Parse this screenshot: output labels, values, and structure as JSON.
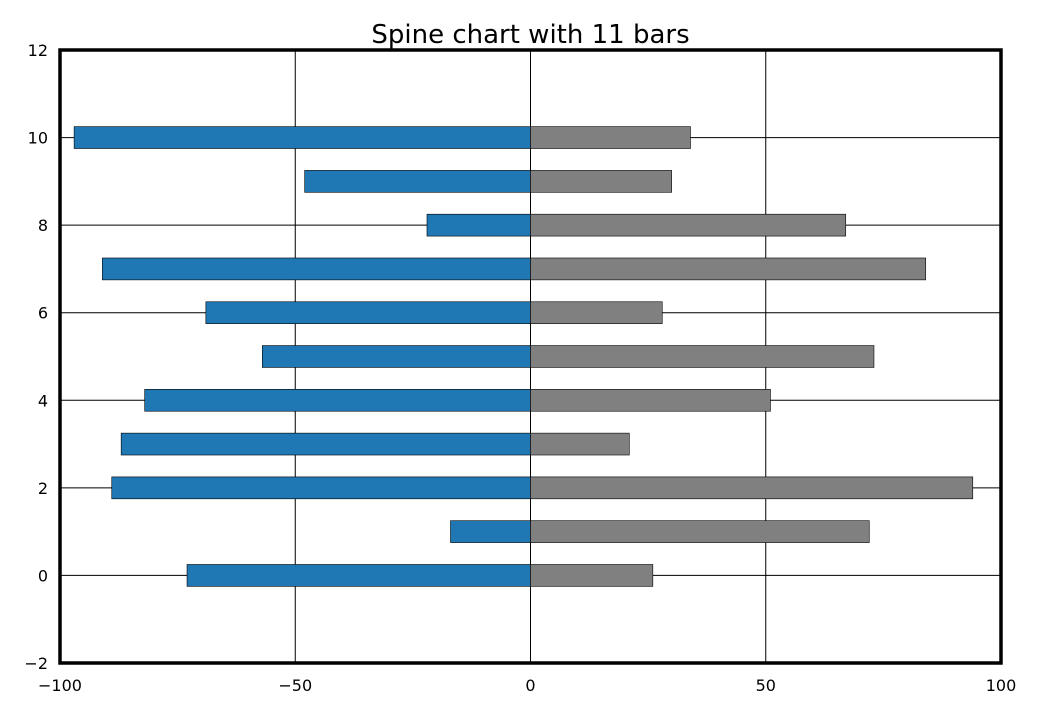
{
  "chart_data": {
    "type": "bar",
    "orientation": "horizontal",
    "title": "Spine chart with 11 bars",
    "xlabel": "",
    "ylabel": "",
    "xlim": [
      -100,
      100
    ],
    "ylim": [
      -2,
      12
    ],
    "x_ticks": [
      -100,
      -50,
      0,
      50,
      100
    ],
    "x_tick_labels": [
      "−100",
      "−50",
      "0",
      "50",
      "100"
    ],
    "y_ticks": [
      -2,
      0,
      2,
      4,
      6,
      8,
      10,
      12
    ],
    "y_tick_labels": [
      "−2",
      "0",
      "2",
      "4",
      "6",
      "8",
      "10",
      "12"
    ],
    "grid": true,
    "categories": [
      0,
      1,
      2,
      3,
      4,
      5,
      6,
      7,
      8,
      9,
      10
    ],
    "series": [
      {
        "color": "#1f77b4",
        "values": [
          -73,
          -17,
          -89,
          -87,
          -82,
          -57,
          -69,
          -91,
          -22,
          -48,
          -97
        ]
      },
      {
        "color": "#808080",
        "values": [
          26,
          72,
          94,
          21,
          51,
          73,
          28,
          84,
          67,
          30,
          34
        ]
      }
    ]
  }
}
